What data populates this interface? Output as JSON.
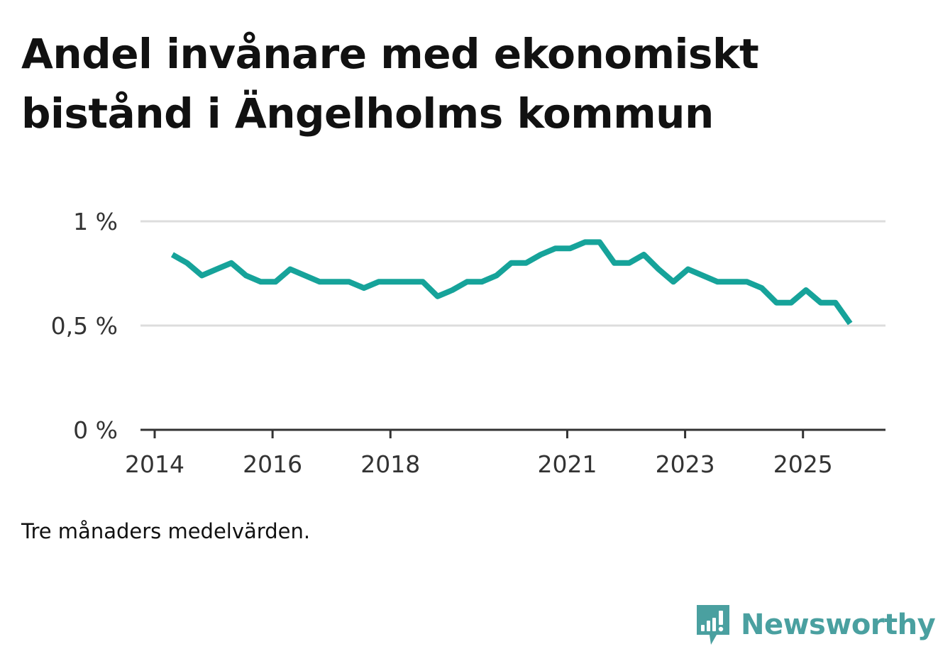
{
  "title": "Andel invånare med ekonomiskt bistånd i Ängelholms kommun",
  "caption": "Tre månaders medelvärden.",
  "brand": {
    "name": "Newsworthy",
    "icon": "newsworthy-logo-icon",
    "color": "#4aa0a0"
  },
  "chart_data": {
    "type": "line",
    "title": "Andel invånare med ekonomiskt bistånd i Ängelholms kommun",
    "xlabel": "",
    "ylabel": "",
    "line_color": "#16a39a",
    "ylim": [
      0,
      1
    ],
    "grid": true,
    "y_ticks": [
      {
        "value": 0,
        "label": "0 %"
      },
      {
        "value": 0.5,
        "label": "0,5 %"
      },
      {
        "value": 1,
        "label": "1 %"
      }
    ],
    "x_ticks": [
      {
        "value": 2014.0,
        "label": "2014"
      },
      {
        "value": 2016.0,
        "label": "2016"
      },
      {
        "value": 2018.0,
        "label": "2018"
      },
      {
        "value": 2021.0,
        "label": "2021"
      },
      {
        "value": 2023.0,
        "label": "2023"
      },
      {
        "value": 2025.0,
        "label": "2025"
      }
    ],
    "series": [
      {
        "name": "Andel invånare med ekonomiskt bistånd",
        "x": [
          2014.3,
          2014.55,
          2014.8,
          2015.05,
          2015.3,
          2015.55,
          2015.8,
          2016.05,
          2016.3,
          2016.55,
          2016.8,
          2017.05,
          2017.3,
          2017.55,
          2017.8,
          2018.05,
          2018.3,
          2018.55,
          2018.8,
          2019.05,
          2019.3,
          2019.55,
          2019.8,
          2020.05,
          2020.3,
          2020.55,
          2020.8,
          2021.05,
          2021.3,
          2021.55,
          2021.8,
          2022.05,
          2022.3,
          2022.55,
          2022.8,
          2023.05,
          2023.3,
          2023.55,
          2023.8,
          2024.05,
          2024.3,
          2024.55,
          2024.8,
          2025.05,
          2025.3,
          2025.55,
          2025.8
        ],
        "values": [
          0.84,
          0.8,
          0.74,
          0.77,
          0.8,
          0.74,
          0.71,
          0.71,
          0.77,
          0.74,
          0.71,
          0.71,
          0.71,
          0.68,
          0.71,
          0.71,
          0.71,
          0.71,
          0.64,
          0.67,
          0.71,
          0.71,
          0.74,
          0.8,
          0.8,
          0.84,
          0.87,
          0.87,
          0.9,
          0.9,
          0.8,
          0.8,
          0.84,
          0.77,
          0.71,
          0.77,
          0.74,
          0.71,
          0.71,
          0.71,
          0.68,
          0.61,
          0.61,
          0.67,
          0.61,
          0.61,
          0.51
        ]
      }
    ]
  }
}
